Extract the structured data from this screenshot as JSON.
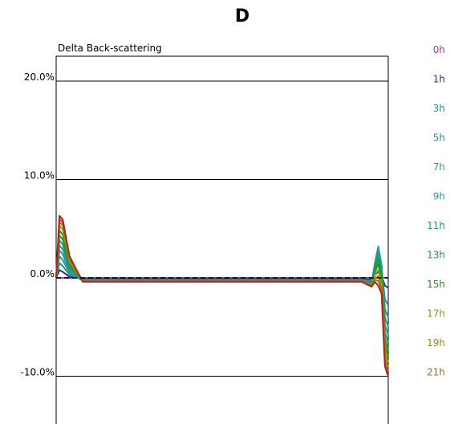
{
  "chart_data": {
    "type": "line",
    "title": "D",
    "ylabel": "Delta Back-scattering",
    "y_tick_labels": [
      "20.0%",
      "10.0%",
      "0.0%",
      "-10.0%"
    ],
    "y_ticks": [
      20,
      10,
      0,
      -10
    ],
    "ylim": [
      -15,
      22
    ],
    "xlim": [
      0,
      100
    ],
    "grid": true,
    "legend_placement": "right",
    "series": [
      {
        "name": "0h",
        "color": "#b03a9e",
        "x": [
          0,
          1,
          2,
          4,
          8,
          15,
          30,
          50,
          70,
          85,
          92,
          95,
          96,
          97,
          98,
          99,
          100
        ],
        "y": [
          0,
          0,
          0,
          0,
          0,
          0,
          0,
          0,
          0,
          0,
          0,
          0,
          0,
          0,
          0,
          0,
          0
        ]
      },
      {
        "name": "1h",
        "color": "#2a2a9a",
        "x": [
          0,
          1,
          2,
          4,
          8,
          15,
          30,
          50,
          70,
          85,
          92,
          95,
          96,
          97,
          98,
          99,
          100
        ],
        "y": [
          0,
          0.8,
          0.6,
          0.1,
          -0.1,
          -0.1,
          -0.1,
          -0.1,
          -0.1,
          -0.1,
          -0.1,
          -0.2,
          0.3,
          0.6,
          0.2,
          -0.8,
          -1.0
        ]
      },
      {
        "name": "3h",
        "color": "#2a8f8f",
        "x": [
          0,
          1,
          2,
          4,
          8,
          15,
          30,
          50,
          70,
          85,
          92,
          95,
          96,
          97,
          98,
          99,
          100
        ],
        "y": [
          0,
          1.5,
          1.2,
          0.3,
          -0.2,
          -0.2,
          -0.2,
          -0.2,
          -0.2,
          -0.2,
          -0.2,
          -0.3,
          0.8,
          1.8,
          0.8,
          -2.2,
          -2.8
        ]
      },
      {
        "name": "5h",
        "color": "#2a8fa0",
        "x": [
          0,
          1,
          2,
          4,
          8,
          15,
          30,
          50,
          70,
          85,
          92,
          95,
          96,
          97,
          98,
          99,
          100
        ],
        "y": [
          0,
          2.2,
          1.8,
          0.5,
          -0.2,
          -0.2,
          -0.2,
          -0.2,
          -0.2,
          -0.2,
          -0.2,
          -0.4,
          1.2,
          2.6,
          1.2,
          -3.2,
          -4.0
        ]
      },
      {
        "name": "7h",
        "color": "#2a9aa8",
        "x": [
          0,
          1,
          2,
          4,
          8,
          15,
          30,
          50,
          70,
          85,
          92,
          95,
          96,
          97,
          98,
          99,
          100
        ],
        "y": [
          0,
          2.8,
          2.4,
          0.6,
          -0.3,
          -0.3,
          -0.3,
          -0.3,
          -0.3,
          -0.3,
          -0.3,
          -0.5,
          1.5,
          3.2,
          1.3,
          -4.0,
          -5.0
        ]
      },
      {
        "name": "9h",
        "color": "#2a9a9a",
        "x": [
          0,
          1,
          2,
          4,
          8,
          15,
          30,
          50,
          70,
          85,
          92,
          95,
          96,
          97,
          98,
          99,
          100
        ],
        "y": [
          0,
          3.3,
          2.9,
          0.8,
          -0.3,
          -0.3,
          -0.3,
          -0.3,
          -0.3,
          -0.3,
          -0.3,
          -0.5,
          1.4,
          3.0,
          1.0,
          -4.8,
          -5.8
        ]
      },
      {
        "name": "11h",
        "color": "#1f9a6a",
        "x": [
          0,
          1,
          2,
          4,
          8,
          15,
          30,
          50,
          70,
          85,
          92,
          95,
          96,
          97,
          98,
          99,
          100
        ],
        "y": [
          0,
          3.8,
          3.4,
          1.0,
          -0.3,
          -0.3,
          -0.3,
          -0.3,
          -0.3,
          -0.3,
          -0.3,
          -0.6,
          1.2,
          2.6,
          0.6,
          -5.5,
          -6.6
        ]
      },
      {
        "name": "13h",
        "color": "#1f9a4a",
        "x": [
          0,
          1,
          2,
          4,
          8,
          15,
          30,
          50,
          70,
          85,
          92,
          95,
          96,
          97,
          98,
          99,
          100
        ],
        "y": [
          0,
          4.3,
          3.9,
          1.2,
          -0.3,
          -0.3,
          -0.3,
          -0.3,
          -0.3,
          -0.3,
          -0.3,
          -0.6,
          0.9,
          2.0,
          0.3,
          -6.2,
          -7.3
        ]
      },
      {
        "name": "15h",
        "color": "#1a9a1a",
        "x": [
          0,
          1,
          2,
          4,
          8,
          15,
          30,
          50,
          70,
          85,
          92,
          95,
          96,
          97,
          98,
          99,
          100
        ],
        "y": [
          0,
          4.8,
          4.4,
          1.4,
          -0.3,
          -0.3,
          -0.3,
          -0.3,
          -0.3,
          -0.3,
          -0.3,
          -0.7,
          0.6,
          1.4,
          0.0,
          -6.8,
          -8.0
        ]
      },
      {
        "name": "17h",
        "color": "#8a9a1a",
        "x": [
          0,
          1,
          2,
          4,
          8,
          15,
          30,
          50,
          70,
          85,
          92,
          95,
          96,
          97,
          98,
          99,
          100
        ],
        "y": [
          0,
          5.3,
          4.9,
          1.6,
          -0.3,
          -0.3,
          -0.3,
          -0.3,
          -0.3,
          -0.3,
          -0.3,
          -0.7,
          0.3,
          0.8,
          -0.4,
          -7.4,
          -8.6
        ]
      },
      {
        "name": "19h",
        "color": "#9a8a1a",
        "x": [
          0,
          1,
          2,
          4,
          8,
          15,
          30,
          50,
          70,
          85,
          92,
          95,
          96,
          97,
          98,
          99,
          100
        ],
        "y": [
          0,
          5.7,
          5.3,
          1.8,
          -0.3,
          -0.3,
          -0.3,
          -0.3,
          -0.3,
          -0.3,
          -0.3,
          -0.8,
          0.0,
          0.2,
          -0.8,
          -8.0,
          -9.1
        ]
      },
      {
        "name": "21h",
        "color": "#8a7a1a",
        "x": [
          0,
          1,
          2,
          4,
          8,
          15,
          30,
          50,
          70,
          85,
          92,
          95,
          96,
          97,
          98,
          99,
          100
        ],
        "y": [
          0,
          6.0,
          5.6,
          2.0,
          -0.3,
          -0.3,
          -0.3,
          -0.3,
          -0.3,
          -0.3,
          -0.3,
          -0.8,
          -0.2,
          -0.3,
          -1.2,
          -8.5,
          -9.5
        ]
      },
      {
        "color": "#c01a1a",
        "x": [
          0,
          1,
          2,
          4,
          8,
          15,
          30,
          50,
          70,
          85,
          92,
          95,
          96,
          97,
          98,
          99,
          100
        ],
        "y": [
          0,
          6.3,
          5.9,
          2.2,
          -0.4,
          -0.4,
          -0.4,
          -0.4,
          -0.4,
          -0.4,
          -0.4,
          -0.9,
          -0.4,
          -0.8,
          -1.6,
          -9.0,
          -10.0
        ]
      }
    ]
  }
}
